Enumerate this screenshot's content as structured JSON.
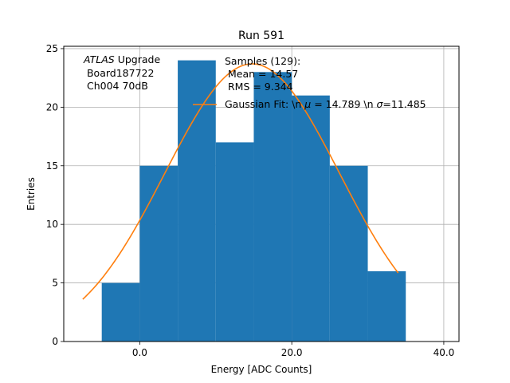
{
  "chart_data": {
    "type": "bar",
    "title": "Run 591",
    "xlabel": "Energy [ADC Counts]",
    "ylabel": "Entries",
    "xlim": [
      -10,
      42
    ],
    "ylim": [
      0,
      25.2
    ],
    "xticks": [
      0,
      20,
      40
    ],
    "xtick_labels": [
      "0.0",
      "20.0",
      "40.0"
    ],
    "yticks": [
      0,
      5,
      10,
      15,
      20,
      25
    ],
    "ytick_labels": [
      "0",
      "5",
      "10",
      "15",
      "20",
      "25"
    ],
    "grid": true,
    "bins": [
      {
        "x0": -5,
        "x1": 0,
        "value": 5
      },
      {
        "x0": 0,
        "x1": 5,
        "value": 15
      },
      {
        "x0": 5,
        "x1": 10,
        "value": 24
      },
      {
        "x0": 10,
        "x1": 15,
        "value": 17
      },
      {
        "x0": 15,
        "x1": 20,
        "value": 23
      },
      {
        "x0": 20,
        "x1": 25,
        "value": 21
      },
      {
        "x0": 25,
        "x1": 30,
        "value": 15
      },
      {
        "x0": 30,
        "x1": 35,
        "value": 6
      }
    ],
    "fit": {
      "mu": 14.789,
      "sigma": 11.485,
      "amplitude": 23.7,
      "x_range": [
        -7.5,
        34.0
      ]
    },
    "colors": {
      "bars": "#1f77b4",
      "fit": "#ff7f0e",
      "grid": "#b0b0b0"
    },
    "annotation": {
      "line1_italic": "ATLAS",
      "line1_rest": " Upgrade",
      "line2": " Board187722",
      "line3": " Ch004 70dB"
    },
    "legend": {
      "placement": "top-right",
      "samples_title": "Samples (129):",
      "samples_mean": " Mean = 14.57",
      "samples_rms": " RMS = 9.344",
      "fit_label_a": "Gaussian Fit: \\n ",
      "fit_label_mu": "μ",
      "fit_label_b": " = 14.789 \\n ",
      "fit_label_sigma": "σ",
      "fit_label_c": "=11.485"
    }
  }
}
